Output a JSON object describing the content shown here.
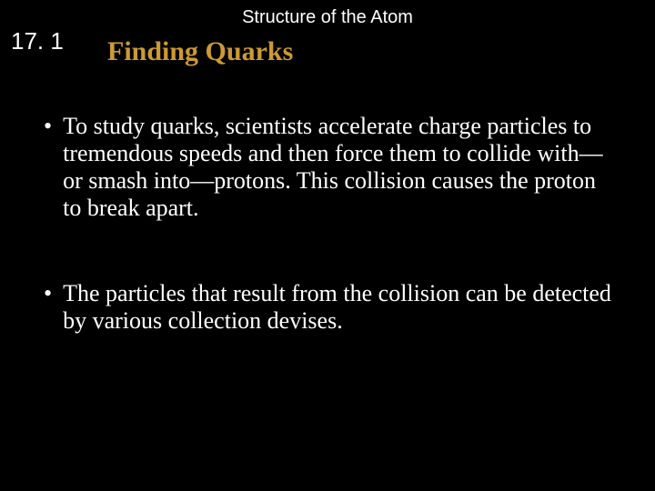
{
  "colors": {
    "background": "#000000",
    "header_text": "#ffffff",
    "section_number_text": "#ffffff",
    "subtitle_text": "#cc9933",
    "body_text": "#ffffff"
  },
  "typography": {
    "header_font": "Arial",
    "header_fontsize_pt": 15,
    "section_number_font": "Arial",
    "section_number_fontsize_pt": 20,
    "subtitle_font": "Times New Roman",
    "subtitle_fontsize_pt": 22,
    "subtitle_weight": "bold",
    "body_font": "Times New Roman",
    "body_fontsize_pt": 20
  },
  "header": {
    "title": "Structure of the Atom"
  },
  "section": {
    "number": "17. 1",
    "subtitle": "Finding Quarks"
  },
  "bullets": [
    "To study quarks, scientists accelerate charge particles to tremendous speeds and then force them to collide with—or smash into—protons. This collision causes the proton to break apart.",
    "The particles that result from the collision can be detected by various collection devises."
  ],
  "bullet_char": "•"
}
